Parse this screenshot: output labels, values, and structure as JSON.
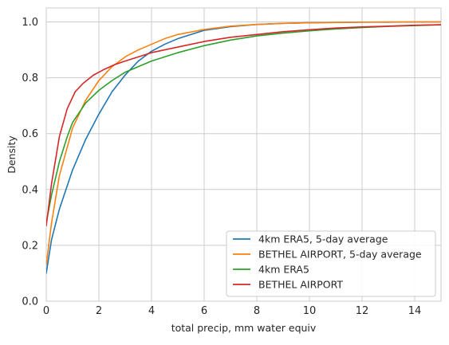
{
  "chart_data": {
    "type": "line",
    "title": "",
    "xlabel": "total precip, mm water equiv",
    "ylabel": "Density",
    "xlim": [
      0,
      15
    ],
    "ylim": [
      0,
      1.05
    ],
    "xticks": [
      0,
      2,
      4,
      6,
      8,
      10,
      12,
      14
    ],
    "yticks": [
      0.0,
      0.2,
      0.4,
      0.6,
      0.8,
      1.0
    ],
    "xtick_labels": [
      "0",
      "2",
      "4",
      "6",
      "8",
      "10",
      "12",
      "14"
    ],
    "ytick_labels": [
      "0.0",
      "0.2",
      "0.4",
      "0.6",
      "0.8",
      "1.0"
    ],
    "grid": true,
    "legend_position": "lower-right",
    "series": [
      {
        "name": "4km ERA5, 5-day average",
        "color": "#1f77b4",
        "x": [
          0,
          0.2,
          0.5,
          1,
          1.5,
          2,
          2.5,
          3,
          3.5,
          4,
          4.5,
          5,
          6,
          7,
          8,
          9,
          10,
          11,
          12,
          13,
          14,
          15
        ],
        "y": [
          0.1,
          0.22,
          0.33,
          0.47,
          0.58,
          0.67,
          0.75,
          0.81,
          0.86,
          0.895,
          0.92,
          0.94,
          0.97,
          0.983,
          0.991,
          0.995,
          0.997,
          0.998,
          0.999,
          0.999,
          1.0,
          1.0
        ]
      },
      {
        "name": "BETHEL AIRPORT, 5-day average",
        "color": "#ff7f0e",
        "x": [
          0,
          0.2,
          0.5,
          1,
          1.5,
          2,
          2.5,
          3,
          3.5,
          4,
          4.5,
          5,
          6,
          7,
          8,
          9,
          10,
          11,
          12,
          13,
          14,
          15
        ],
        "y": [
          0.13,
          0.28,
          0.45,
          0.62,
          0.72,
          0.79,
          0.84,
          0.875,
          0.9,
          0.92,
          0.94,
          0.955,
          0.973,
          0.985,
          0.991,
          0.995,
          0.997,
          0.998,
          0.999,
          1.0,
          1.0,
          1.0
        ]
      },
      {
        "name": "4km ERA5",
        "color": "#2ca02c",
        "x": [
          0,
          0.2,
          0.5,
          0.8,
          1,
          1.5,
          2,
          2.5,
          3,
          3.5,
          4,
          5,
          6,
          7,
          8,
          9,
          10,
          11,
          12,
          13,
          14,
          15
        ],
        "y": [
          0.28,
          0.38,
          0.5,
          0.59,
          0.64,
          0.71,
          0.755,
          0.79,
          0.82,
          0.84,
          0.86,
          0.89,
          0.915,
          0.935,
          0.95,
          0.96,
          0.968,
          0.975,
          0.98,
          0.984,
          0.987,
          0.99
        ]
      },
      {
        "name": "BETHEL AIRPORT",
        "color": "#d62728",
        "x": [
          0,
          0.2,
          0.5,
          0.8,
          1.1,
          1.4,
          1.8,
          2.2,
          2.6,
          3,
          3.5,
          4,
          5,
          6,
          7,
          8,
          9,
          10,
          11,
          12,
          13,
          14,
          15
        ],
        "y": [
          0.27,
          0.42,
          0.59,
          0.69,
          0.75,
          0.78,
          0.81,
          0.83,
          0.847,
          0.86,
          0.875,
          0.89,
          0.91,
          0.93,
          0.945,
          0.955,
          0.965,
          0.972,
          0.978,
          0.982,
          0.985,
          0.988,
          0.99
        ]
      }
    ]
  }
}
